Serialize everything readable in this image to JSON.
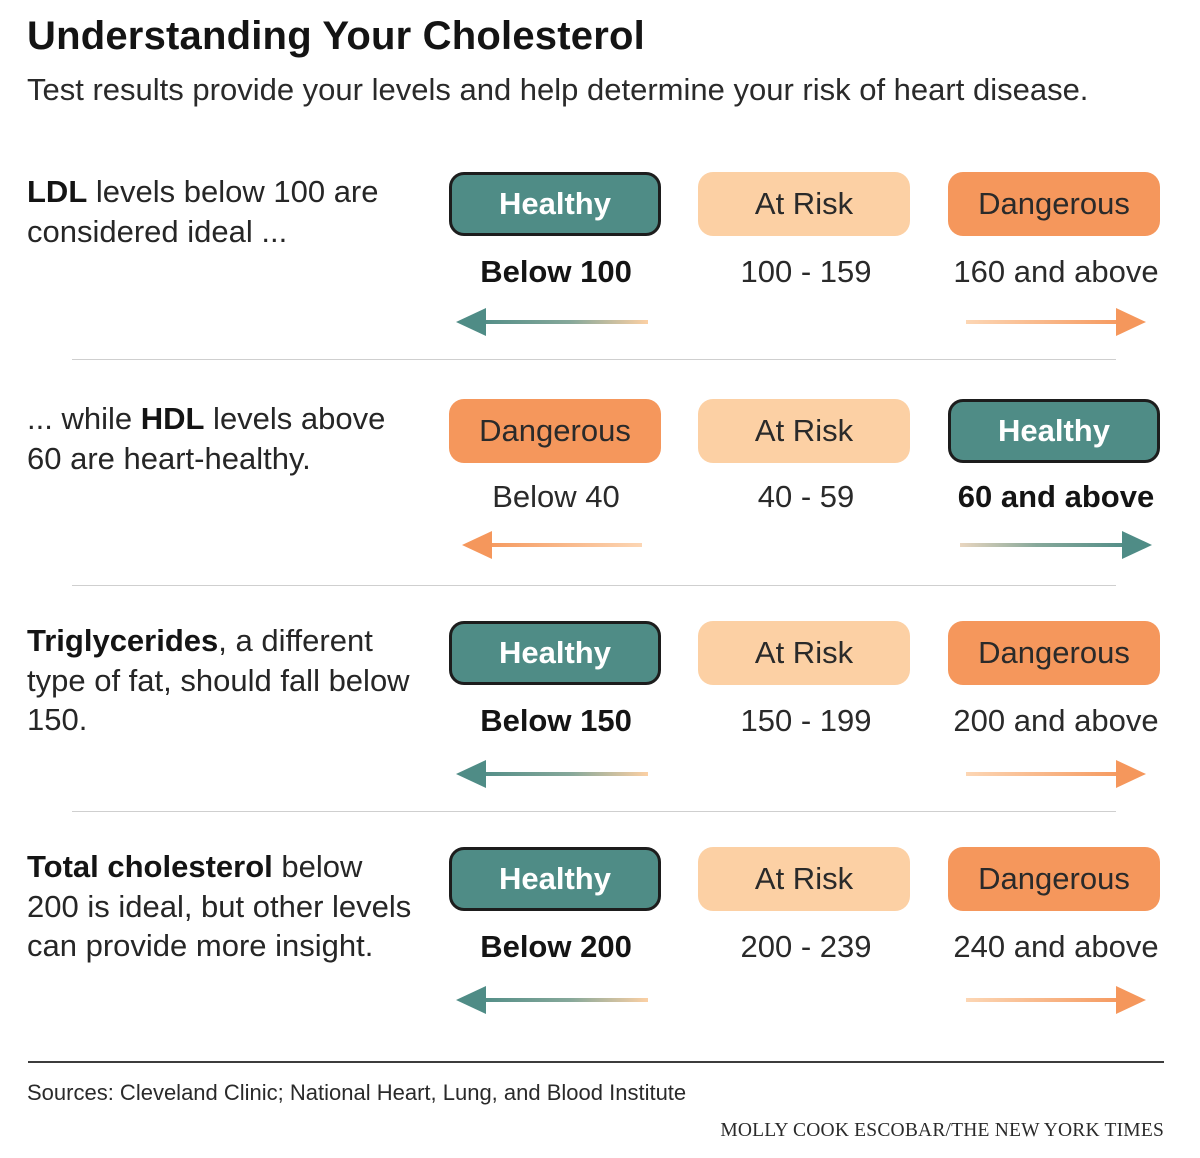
{
  "title": "Understanding Your Cholesterol",
  "subtitle": "Test results provide your levels and help determine your risk of heart disease.",
  "colors": {
    "healthy": "#4f8c86",
    "at_risk": "#fcd0a4",
    "dangerous": "#f5975c",
    "text": "#1c1c1c"
  },
  "rows": [
    {
      "desc_bold": "LDL",
      "desc_rest": " levels below 100 are considered ideal ...",
      "cells": [
        {
          "label": "Healthy",
          "range": "Below 100"
        },
        {
          "label": "At Risk",
          "range": "100 - 159"
        },
        {
          "label": "Dangerous",
          "range": "160 and above"
        }
      ]
    },
    {
      "desc_pre": "... while ",
      "desc_bold": "HDL",
      "desc_rest": " levels above 60 are heart-healthy.",
      "cells": [
        {
          "label": "Dangerous",
          "range": "Below 40"
        },
        {
          "label": "At Risk",
          "range": "40 - 59"
        },
        {
          "label": "Healthy",
          "range": "60 and above"
        }
      ]
    },
    {
      "desc_bold": "Triglycerides",
      "desc_rest": ", a different type of fat, should fall below 150.",
      "cells": [
        {
          "label": "Healthy",
          "range": "Below 150"
        },
        {
          "label": "At Risk",
          "range": "150 - 199"
        },
        {
          "label": "Dangerous",
          "range": "200 and above"
        }
      ]
    },
    {
      "desc_bold": "Total cholesterol",
      "desc_rest": " below 200 is ideal, but other levels can provide more insight.",
      "cells": [
        {
          "label": "Healthy",
          "range": "Below 200"
        },
        {
          "label": "At Risk",
          "range": "200 - 239"
        },
        {
          "label": "Dangerous",
          "range": "240 and above"
        }
      ]
    }
  ],
  "sources": "Sources: Cleveland Clinic; National Heart, Lung, and Blood Institute",
  "credit": "MOLLY COOK ESCOBAR/THE NEW YORK TIMES"
}
